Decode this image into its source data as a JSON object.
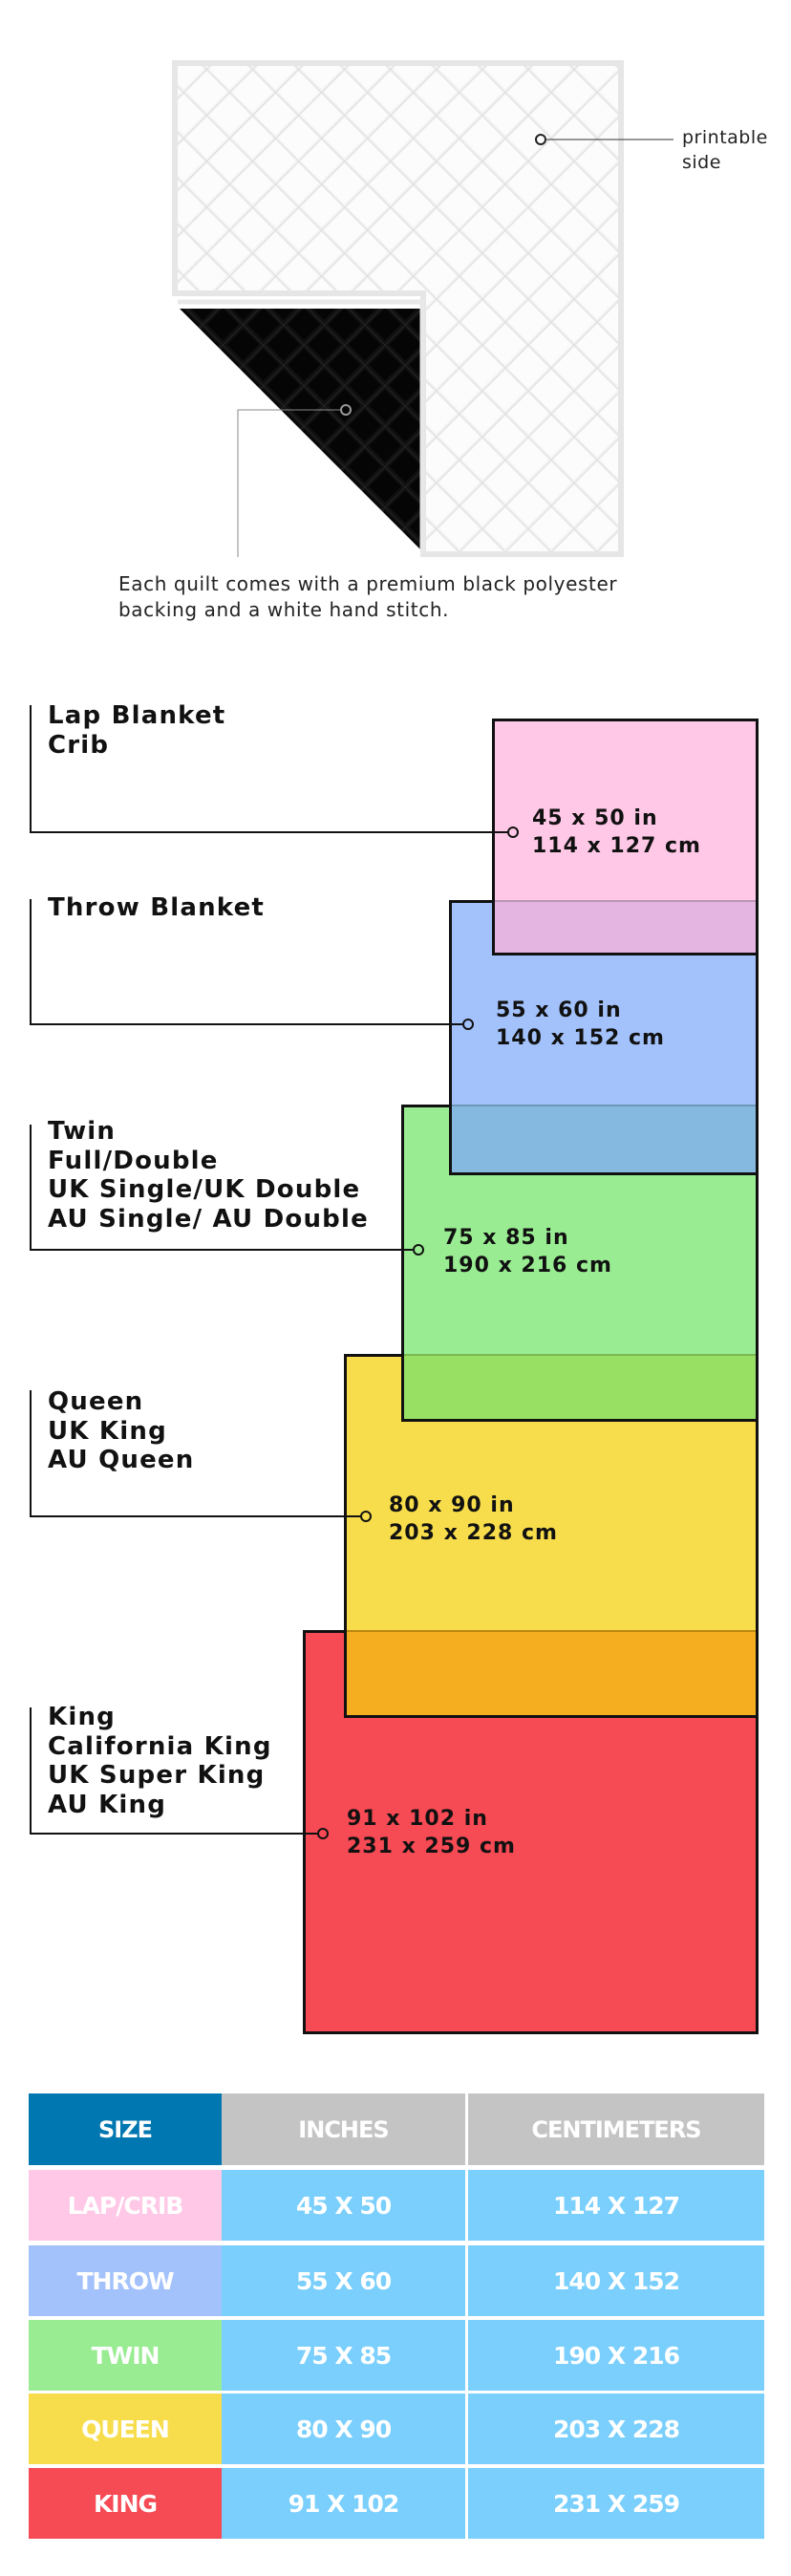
{
  "quilt": {
    "printable_label": [
      "printable",
      "side"
    ],
    "caption": [
      "Each quilt comes with a premium black polyester",
      "backing and a white hand stitch."
    ]
  },
  "sizes": [
    {
      "names": [
        "Lap Blanket",
        "Crib"
      ],
      "inches": "45 x 50 in",
      "cm": "114 x 127 cm",
      "color": "#FEC8E6"
    },
    {
      "names": [
        "Throw Blanket"
      ],
      "inches": "55 x 60 in",
      "cm": "140 x 152 cm",
      "color": "#A3C2FC"
    },
    {
      "names": [
        "Twin",
        "Full/Double",
        "UK Single/UK Double",
        "AU Single/ AU Double"
      ],
      "inches": "75 x 85 in",
      "cm": "190 x 216 cm",
      "color": "#99EC92"
    },
    {
      "names": [
        "Queen",
        "UK King",
        "AU Queen"
      ],
      "inches": "80 x 90 in",
      "cm": "203 x 228 cm",
      "color": "#F7DD4C"
    },
    {
      "names": [
        "King",
        "California King",
        "UK Super King",
        "AU King"
      ],
      "inches": "91 x 102 in",
      "cm": "231 x 259 cm",
      "color": "#F64A54"
    }
  ],
  "table": {
    "headers": [
      "SIZE",
      "INCHES",
      "CENTIMETERS"
    ],
    "header_colors": {
      "size": "#0077B0",
      "other": "#C4C4C4"
    },
    "value_cell_color": "#7ACFFC",
    "rows": [
      {
        "size": "LAP/CRIB",
        "inches": "45 X 50",
        "cm": "114 X 127",
        "color": "#FEC8E6"
      },
      {
        "size": "THROW",
        "inches": "55 X 60",
        "cm": "140 X 152",
        "color": "#A3C2FC"
      },
      {
        "size": "TWIN",
        "inches": "75 X 85",
        "cm": "190 X 216",
        "color": "#99EC92"
      },
      {
        "size": "QUEEN",
        "inches": "80 X 90",
        "cm": "203 X 228",
        "color": "#F7DD4C"
      },
      {
        "size": "KING",
        "inches": "91 X 102",
        "cm": "231 X 259",
        "color": "#F64A54"
      }
    ]
  }
}
